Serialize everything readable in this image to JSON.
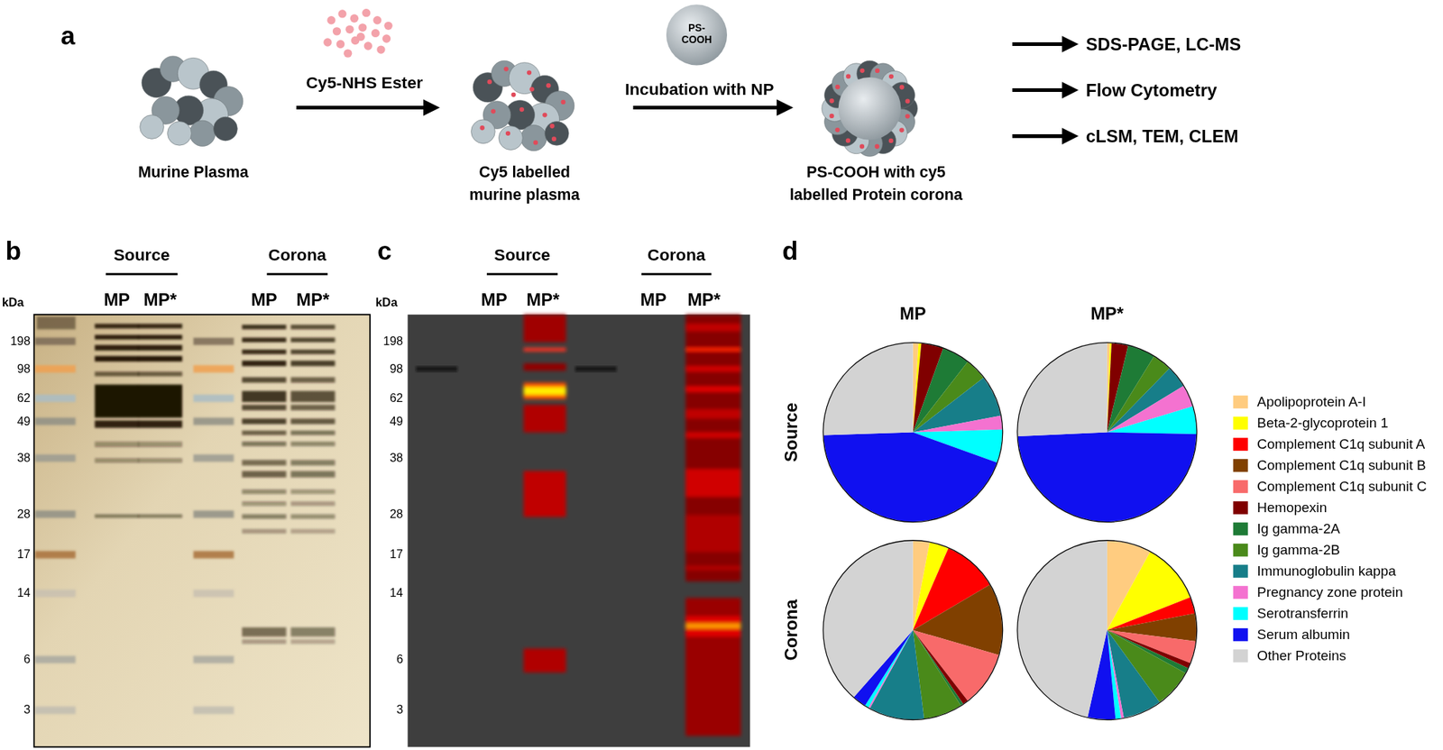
{
  "panel_labels": [
    "a",
    "b",
    "c",
    "d"
  ],
  "schematic": {
    "steps": [
      [
        "Murine Plasma"
      ],
      [
        "Cy5 labelled",
        "murine plasma"
      ],
      [
        "PS-COOH with cy5",
        "labelled Protein corona"
      ]
    ],
    "reagents": [
      [
        "Cy5-NHS Ester"
      ],
      [
        "Incubation with NP"
      ]
    ],
    "nanoparticle": [
      "PS-",
      "COOH"
    ],
    "analyses": [
      "SDS-PAGE, LC-MS",
      "Flow Cytometry",
      "cLSM, TEM, CLEM"
    ]
  },
  "gels": [
    {
      "groups": [
        "Source",
        "Corona"
      ],
      "lanes": [
        "MP",
        "MP*",
        "MP",
        "MP*"
      ],
      "axis_title": "kDa",
      "markers": [
        198,
        98,
        62,
        49,
        38,
        28,
        17,
        14,
        6,
        3
      ]
    },
    {
      "groups": [
        "Source",
        "Corona"
      ],
      "lanes": [
        "MP",
        "MP*",
        "MP",
        "MP*"
      ],
      "axis_title": "kDa",
      "markers": [
        198,
        98,
        62,
        49,
        38,
        28,
        17,
        14,
        6,
        3
      ]
    }
  ],
  "chart_data": {
    "type": "pie",
    "legend": "right",
    "columns": [
      "MP",
      "MP*"
    ],
    "rows": [
      "Source",
      "Corona"
    ],
    "categories": [
      "Apolipoprotein A-I",
      "Beta-2-glycoprotein 1",
      "Complement C1q subunit A",
      "Complement C1q subunit B",
      "Complement C1q subunit C",
      "Hemopexin",
      "Ig gamma-2A",
      "Ig gamma-2B",
      "Immunoglobulin kappa",
      "Pregnancy zone protein",
      "Serotransferrin",
      "Serum albumin",
      "Other Proteins"
    ],
    "colors": [
      "#FFCC80",
      "#FFFF00",
      "#FF0000",
      "#804000",
      "#F86A6A",
      "#800000",
      "#1E7B36",
      "#4A8A1A",
      "#177E89",
      "#F472D0",
      "#00FFFF",
      "#1010F0",
      "#D3D3D3"
    ],
    "series": [
      {
        "row": "Source",
        "column": "MP",
        "values": [
          1,
          0.5,
          0,
          0,
          0,
          4,
          5,
          4,
          7.5,
          2.5,
          6,
          44,
          25.5
        ]
      },
      {
        "row": "Source",
        "column": "MP*",
        "values": [
          0.5,
          0.3,
          0,
          0,
          0,
          3,
          5,
          3.5,
          4,
          4,
          5,
          49,
          25.7
        ]
      },
      {
        "row": "Corona",
        "column": "MP",
        "values": [
          3,
          3.5,
          10,
          13,
          10,
          1,
          0.5,
          7,
          10,
          0.3,
          0.7,
          2.5,
          38.5
        ]
      },
      {
        "row": "Corona",
        "column": "MP*",
        "values": [
          8,
          11,
          3,
          5,
          4,
          1,
          1,
          7,
          7,
          0.5,
          1,
          5,
          46.5
        ]
      }
    ]
  }
}
